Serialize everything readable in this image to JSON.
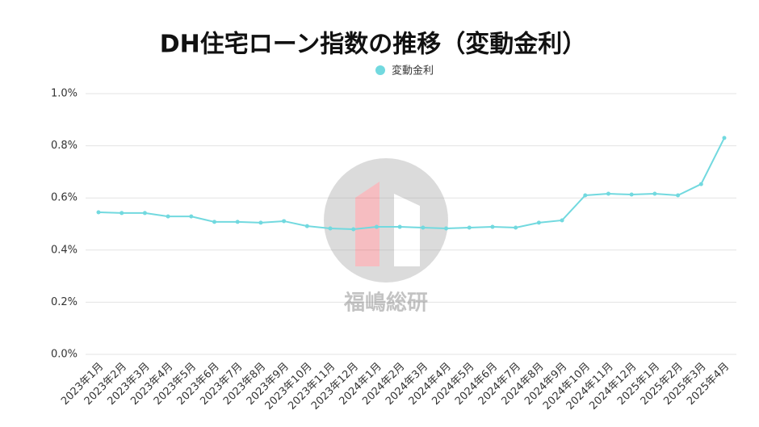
{
  "chart_data": {
    "type": "line",
    "title": "DH住宅ローン指数の推移（変動金利）",
    "watermark": "福嶋総研",
    "categories": [
      "2023年1月",
      "2023年2月",
      "2023年3月",
      "2023年4月",
      "2023年5月",
      "2023年6月",
      "2023年7月",
      "2023年8月",
      "2023年9月",
      "2023年10月",
      "2023年11月",
      "2023年12月",
      "2024年1月",
      "2024年2月",
      "2024年3月",
      "2024年4月",
      "2024年5月",
      "2024年6月",
      "2024年7月",
      "2024年8月",
      "2024年9月",
      "2024年10月",
      "2024年11月",
      "2024年12月",
      "2025年1月",
      "2025年2月",
      "2025年3月",
      "2025年4月"
    ],
    "series": [
      {
        "name": "変動金利",
        "color": "#72d9df",
        "values": [
          0.545,
          0.542,
          0.542,
          0.529,
          0.529,
          0.508,
          0.508,
          0.505,
          0.511,
          0.492,
          0.483,
          0.48,
          0.489,
          0.489,
          0.486,
          0.483,
          0.486,
          0.489,
          0.486,
          0.505,
          0.514,
          0.61,
          0.616,
          0.613,
          0.616,
          0.61,
          0.653,
          0.83
        ]
      }
    ],
    "ylim": [
      0,
      1.0
    ],
    "yticks": [
      {
        "value": 0,
        "label": "0.0%"
      },
      {
        "value": 0.2,
        "label": "0.2%"
      },
      {
        "value": 0.4,
        "label": "0.4%"
      },
      {
        "value": 0.6,
        "label": "0.6%"
      },
      {
        "value": 0.8,
        "label": "0.8%"
      },
      {
        "value": 1.0,
        "label": "1.0%"
      }
    ],
    "grid": true
  }
}
